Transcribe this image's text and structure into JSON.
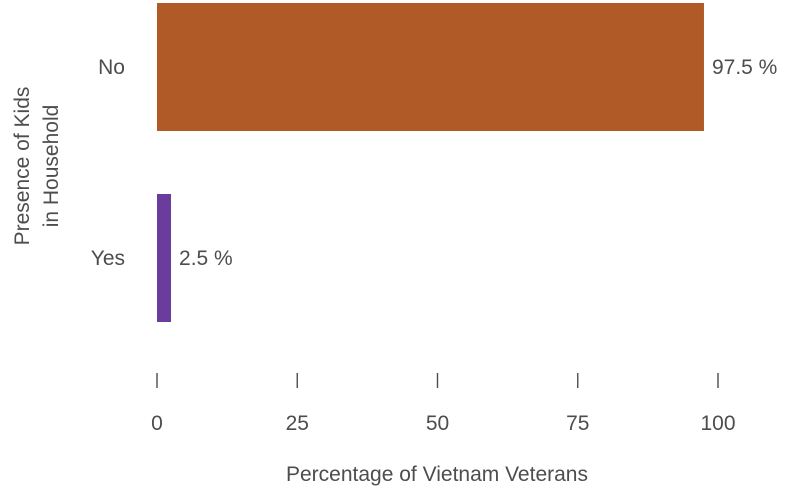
{
  "chart_data": {
    "type": "bar",
    "orientation": "horizontal",
    "categories": [
      "No",
      "Yes"
    ],
    "values": [
      97.5,
      2.5
    ],
    "value_labels": [
      "97.5 %",
      "2.5 %"
    ],
    "colors": [
      "#b05a27",
      "#6a3c9e"
    ],
    "xlabel": "Percentage of Vietnam Veterans",
    "ylabel": [
      "Presence of Kids",
      "in Household"
    ],
    "xlim": [
      0,
      100
    ],
    "xticks": [
      0,
      25,
      50,
      75,
      100
    ],
    "xtick_labels": [
      "0",
      "25",
      "50",
      "75",
      "100"
    ],
    "grid": false,
    "legend": "none"
  }
}
